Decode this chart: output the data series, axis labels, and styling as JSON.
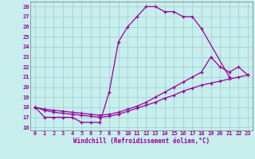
{
  "xlabel": "Windchill (Refroidissement éolien,°C)",
  "bg_color": "#c8eeee",
  "line_color": "#990099",
  "grid_color": "#99cccc",
  "xlim_min": -0.5,
  "xlim_max": 23.5,
  "ylim_min": 15.7,
  "ylim_max": 28.5,
  "xticks": [
    0,
    1,
    2,
    3,
    4,
    5,
    6,
    7,
    8,
    9,
    10,
    11,
    12,
    13,
    14,
    15,
    16,
    17,
    18,
    19,
    20,
    21,
    22,
    23
  ],
  "yticks": [
    16,
    17,
    18,
    19,
    20,
    21,
    22,
    23,
    24,
    25,
    26,
    27,
    28
  ],
  "line1_x": [
    0,
    1,
    2,
    3,
    4,
    5,
    6,
    7,
    8,
    9,
    10,
    11,
    12,
    13,
    14,
    15,
    16,
    17,
    18,
    21
  ],
  "line1_y": [
    18,
    17,
    17,
    17,
    17,
    16.5,
    16.5,
    16.5,
    19.5,
    24.5,
    26,
    27,
    28,
    28,
    27.5,
    27.5,
    27,
    27,
    25.8,
    21
  ],
  "line2_x": [
    0,
    1,
    2,
    3,
    4,
    5,
    6,
    7,
    8,
    9,
    10,
    11,
    12,
    13,
    14,
    15,
    16,
    17,
    18,
    19,
    20,
    21,
    22,
    23
  ],
  "line2_y": [
    18,
    17.8,
    17.7,
    17.6,
    17.5,
    17.4,
    17.3,
    17.2,
    17.3,
    17.5,
    17.8,
    18.1,
    18.5,
    19.0,
    19.5,
    20.0,
    20.5,
    21.0,
    21.5,
    23,
    22,
    21.5,
    22,
    21.2
  ],
  "line3_x": [
    0,
    1,
    2,
    3,
    4,
    5,
    6,
    7,
    8,
    9,
    10,
    11,
    12,
    13,
    14,
    15,
    16,
    17,
    18,
    19,
    20,
    21,
    22,
    23
  ],
  "line3_y": [
    18,
    17.7,
    17.5,
    17.4,
    17.3,
    17.2,
    17.1,
    17.0,
    17.1,
    17.3,
    17.6,
    17.9,
    18.2,
    18.5,
    18.9,
    19.2,
    19.6,
    19.9,
    20.2,
    20.4,
    20.6,
    20.8,
    21.0,
    21.2
  ]
}
